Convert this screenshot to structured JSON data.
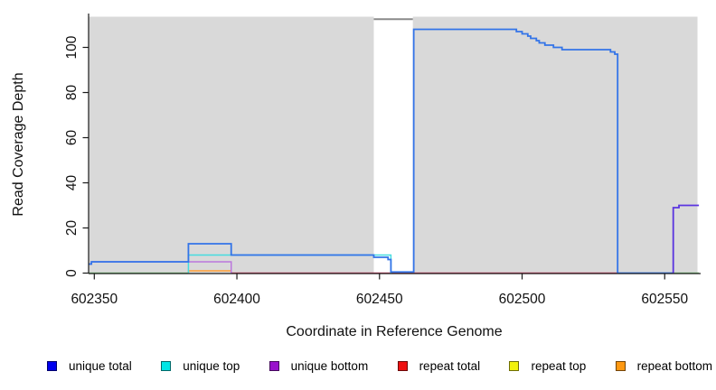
{
  "chart_data": {
    "type": "line",
    "title": "",
    "xlabel": "Coordinate in Reference Genome",
    "ylabel": "Read Coverage Depth",
    "x_ticks": [
      602350,
      602400,
      602450,
      602500,
      602550
    ],
    "y_ticks": [
      0,
      20,
      40,
      60,
      80,
      100
    ],
    "xlim": [
      602348,
      602562
    ],
    "ylim": [
      0,
      113.5
    ],
    "grid": "off",
    "legend_position": "bottom",
    "panel_color": "#d9d9d9",
    "axis_color": "#1a1a1a",
    "shaded_regions": [
      {
        "name": "unique-region-left",
        "x0": 602348,
        "x1": 602448,
        "color": "#d9d9d9"
      },
      {
        "name": "unique-region-right",
        "x0": 602461.7,
        "x1": 602561.5,
        "color": "#d9d9d9"
      }
    ],
    "unshaded_gap": {
      "name": "repeat-region-gap",
      "x0": 602448,
      "x1": 602461.7
    },
    "overlay_segments": [
      {
        "name": "offscale-cap-line",
        "color": "#8a8a8a",
        "width": 2,
        "points": [
          [
            602448,
            112.5
          ],
          [
            602461.7,
            112.5
          ]
        ]
      }
    ],
    "series": [
      {
        "name": "baseline-green-left",
        "color": "#7cc47c",
        "width": 1.5,
        "points": [
          [
            602348,
            0
          ],
          [
            602383,
            0
          ]
        ]
      },
      {
        "name": "baseline-green-right",
        "color": "#7cc47c",
        "width": 1.5,
        "points": [
          [
            602553,
            0
          ],
          [
            602562,
            0
          ]
        ]
      },
      {
        "name": "repeat-total-line",
        "color": "#d2486c",
        "width": 1.5,
        "points": [
          [
            602398,
            0
          ],
          [
            602533.5,
            0
          ]
        ]
      },
      {
        "name": "repeat-bottom-line",
        "color": "#ff9d33",
        "width": 1.5,
        "points": [
          [
            602383,
            0
          ],
          [
            602383,
            1
          ],
          [
            602398,
            1
          ],
          [
            602398,
            0
          ]
        ]
      },
      {
        "name": "unique-top-line",
        "color": "#45dce0",
        "width": 1.5,
        "points": [
          [
            602383,
            0
          ],
          [
            602383,
            8
          ],
          [
            602454,
            8
          ],
          [
            602454,
            0
          ]
        ]
      },
      {
        "name": "unique-bottom-line",
        "color": "#bb77dd",
        "width": 1.5,
        "points": [
          [
            602348,
            4
          ],
          [
            602349,
            4
          ],
          [
            602349,
            5
          ],
          [
            602398,
            5
          ],
          [
            602398,
            0
          ]
        ]
      },
      {
        "name": "unique-total-line",
        "color": "#3374e8",
        "width": 1.8,
        "points": [
          [
            602348,
            4
          ],
          [
            602349,
            4
          ],
          [
            602349,
            5
          ],
          [
            602383,
            5
          ],
          [
            602383,
            13
          ],
          [
            602398,
            13
          ],
          [
            602398,
            8
          ],
          [
            602448,
            8
          ],
          [
            602448,
            7
          ],
          [
            602453,
            7
          ],
          [
            602453,
            6
          ],
          [
            602454,
            6
          ],
          [
            602454,
            0.5
          ],
          [
            602462,
            0.5
          ],
          [
            602462,
            108
          ],
          [
            602498,
            108
          ],
          [
            602498,
            107
          ],
          [
            602500,
            107
          ],
          [
            602500,
            106
          ],
          [
            602502,
            106
          ],
          [
            602502,
            105
          ],
          [
            602503,
            105
          ],
          [
            602503,
            104
          ],
          [
            602505,
            104
          ],
          [
            602505,
            103
          ],
          [
            602506,
            103
          ],
          [
            602506,
            102
          ],
          [
            602508,
            102
          ],
          [
            602508,
            101
          ],
          [
            602511,
            101
          ],
          [
            602511,
            100
          ],
          [
            602514,
            100
          ],
          [
            602514,
            99
          ],
          [
            602531,
            99
          ],
          [
            602531,
            98
          ],
          [
            602532.5,
            98
          ],
          [
            602532.5,
            97
          ],
          [
            602533.5,
            97
          ],
          [
            602533.5,
            0
          ],
          [
            602553,
            0
          ]
        ]
      },
      {
        "name": "right-end-overlap-line",
        "color": "#5b35e0",
        "width": 1.8,
        "points": [
          [
            602553,
            0
          ],
          [
            602553,
            29
          ],
          [
            602555,
            29
          ],
          [
            602555,
            30
          ],
          [
            602562,
            30
          ]
        ]
      }
    ],
    "legend": [
      {
        "label": "unique total",
        "color": "#0000ee"
      },
      {
        "label": "unique top",
        "color": "#00e6e6"
      },
      {
        "label": "unique bottom",
        "color": "#9912cc"
      },
      {
        "label": "repeat total",
        "color": "#ee1111"
      },
      {
        "label": "repeat top",
        "color": "#f2f20c"
      },
      {
        "label": "repeat bottom",
        "color": "#ff9912"
      }
    ]
  }
}
